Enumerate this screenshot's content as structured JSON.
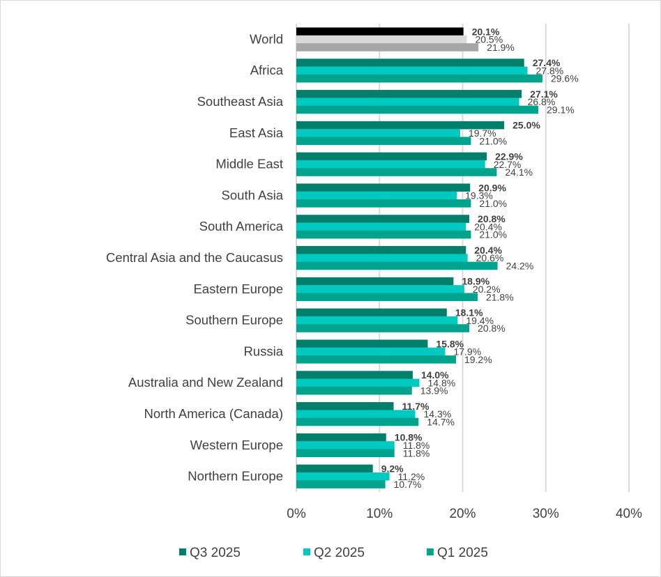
{
  "chart_data": {
    "type": "bar",
    "orientation": "horizontal",
    "title": "",
    "xlabel": "",
    "ylabel": "",
    "xlim": [
      0,
      40
    ],
    "x_ticks": [
      "0%",
      "10%",
      "20%",
      "30%",
      "40%"
    ],
    "grid": true,
    "legend_placement": "bottom",
    "categories": [
      "World",
      "Africa",
      "Southeast Asia",
      "East Asia",
      "Middle East",
      "South Asia",
      "South America",
      "Central Asia and the Caucasus",
      "Eastern Europe",
      "Southern Europe",
      "Russia",
      "Australia and New Zealand",
      "North America (Canada)",
      "Western Europe",
      "Northern Europe"
    ],
    "series": [
      {
        "name": "Q3 2025",
        "color": "#007F6D",
        "highlight_color": "#000000",
        "values": [
          20.1,
          27.4,
          27.1,
          25.0,
          22.9,
          20.9,
          20.8,
          20.4,
          18.9,
          18.1,
          15.8,
          14.0,
          11.7,
          10.8,
          9.2
        ]
      },
      {
        "name": "Q2 2025",
        "color": "#00C9BF",
        "highlight_color": "#D9D9D9",
        "values": [
          20.5,
          27.8,
          26.8,
          19.7,
          22.7,
          19.3,
          20.4,
          20.6,
          20.2,
          19.4,
          17.9,
          14.8,
          14.3,
          11.8,
          11.2
        ]
      },
      {
        "name": "Q1 2025",
        "color": "#00A48C",
        "highlight_color": "#A6A6A6",
        "values": [
          21.9,
          29.6,
          29.1,
          21.0,
          24.1,
          21.0,
          21.0,
          24.2,
          21.8,
          20.8,
          19.2,
          13.9,
          14.7,
          11.8,
          10.7
        ]
      }
    ],
    "highlighted_category": "World",
    "label_color": "#404040",
    "grid_color": "#D9D9D9"
  }
}
